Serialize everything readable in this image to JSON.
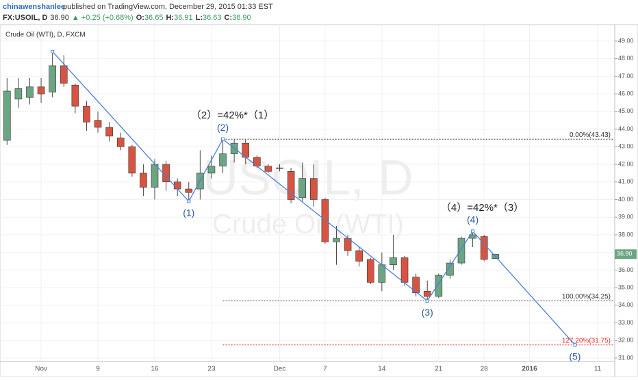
{
  "header": {
    "author": "chinawenshanlee",
    "published": "published on TradingView.com, December 29, 2015 01:33 EST",
    "symbol": "FX:USOIL, D",
    "price": "36.90",
    "change": "▲ +0.25 (+0.68%)",
    "ohlc": [
      {
        "key": "O:",
        "value": "36.65"
      },
      {
        "key": "H:",
        "value": "36.91"
      },
      {
        "key": "L:",
        "value": "36.63"
      },
      {
        "key": "C:",
        "value": "36.90"
      }
    ]
  },
  "chart_data": {
    "type": "candlestick",
    "legend": "Crude Oil (WTI), D, FXCM",
    "watermark": [
      "USOIL, D",
      "Crude Oil (WTI)"
    ],
    "categories": [
      null,
      null,
      null,
      "Nov",
      null,
      null,
      null,
      null,
      "9",
      null,
      null,
      null,
      null,
      "16",
      null,
      null,
      null,
      null,
      "23",
      null,
      null,
      null,
      null,
      null,
      "Dec",
      null,
      null,
      null,
      "7",
      null,
      null,
      null,
      null,
      "14",
      null,
      null,
      null,
      null,
      "21",
      null,
      null,
      null,
      "28",
      null,
      null,
      null,
      "2016",
      null,
      null,
      null,
      null,
      null,
      "11",
      null
    ],
    "open": [
      43.36,
      45.7,
      45.8,
      46.4,
      46.1,
      47.6,
      46.5,
      45.3,
      44.5,
      44.1,
      43.5,
      43.0,
      41.5,
      40.7,
      42.0,
      41.0,
      40.6,
      40.6,
      41.5,
      41.9,
      42.6,
      43.2,
      42.4,
      41.9,
      41.8,
      41.6,
      40.1,
      41.2,
      40.0,
      37.6,
      37.8,
      37.1,
      36.6,
      35.3,
      36.3,
      36.7,
      35.6,
      34.8,
      34.5,
      35.7,
      36.4,
      37.8,
      37.9,
      36.65,
      null,
      null,
      null,
      null,
      null,
      null,
      null,
      null,
      null,
      null
    ],
    "high": [
      46.9,
      46.9,
      46.9,
      46.9,
      48.4,
      48.2,
      46.6,
      45.6,
      45.0,
      44.4,
      43.8,
      43.1,
      42.0,
      42.3,
      42.2,
      41.2,
      41.0,
      42.8,
      42.5,
      43.43,
      43.4,
      43.4,
      42.5,
      42.0,
      42.0,
      41.8,
      42.1,
      42.0,
      40.1,
      38.5,
      38.0,
      37.3,
      36.7,
      37.0,
      38.0,
      36.8,
      35.8,
      35.4,
      35.8,
      36.6,
      37.9,
      38.2,
      38.0,
      36.91,
      null,
      null,
      null,
      null,
      null,
      null,
      null,
      null,
      null,
      null
    ],
    "low": [
      43.1,
      45.2,
      45.4,
      45.5,
      45.8,
      46.4,
      44.9,
      43.9,
      43.8,
      43.3,
      42.8,
      41.3,
      40.2,
      40.0,
      40.5,
      40.2,
      39.9,
      40.0,
      41.2,
      41.5,
      42.1,
      42.0,
      41.8,
      41.5,
      41.6,
      39.8,
      39.9,
      39.6,
      37.5,
      36.3,
      36.8,
      36.2,
      35.2,
      34.8,
      36.0,
      35.1,
      34.5,
      34.25,
      34.4,
      35.5,
      36.3,
      37.3,
      36.5,
      36.63,
      null,
      null,
      null,
      null,
      null,
      null,
      null,
      null,
      null,
      null
    ],
    "close": [
      46.16,
      46.3,
      46.4,
      46.0,
      47.6,
      46.6,
      45.3,
      44.4,
      44.1,
      43.6,
      43.0,
      41.5,
      40.7,
      42.0,
      41.0,
      40.6,
      40.4,
      41.5,
      41.9,
      42.6,
      43.2,
      42.4,
      41.9,
      41.6,
      41.8,
      40.0,
      41.2,
      40.0,
      37.6,
      37.8,
      37.1,
      36.5,
      35.3,
      36.3,
      36.7,
      35.3,
      34.7,
      34.5,
      35.7,
      36.4,
      37.8,
      38.0,
      36.6,
      36.9,
      null,
      null,
      null,
      null,
      null,
      null,
      null,
      null,
      null,
      null
    ],
    "up_color": "#6ba583",
    "down_color": "#d75442",
    "ylim": [
      30.34,
      49.93
    ],
    "yticks": [
      {
        "value": 31,
        "label": "31.00"
      },
      {
        "value": 32,
        "label": "32.00"
      },
      {
        "value": 33,
        "label": "33.00"
      },
      {
        "value": 34,
        "label": "34.00"
      },
      {
        "value": 35,
        "label": "35.00"
      },
      {
        "value": 36,
        "label": "36.00"
      },
      {
        "value": 37,
        "label": "37.00"
      },
      {
        "value": 38,
        "label": "38.00"
      },
      {
        "value": 39,
        "label": "39.00"
      },
      {
        "value": 40,
        "label": "40.00"
      },
      {
        "value": 41,
        "label": "41.00"
      },
      {
        "value": 42,
        "label": "42.00"
      },
      {
        "value": 43,
        "label": "43.00"
      },
      {
        "value": 44,
        "label": "44.00"
      },
      {
        "value": 45,
        "label": "45.00"
      },
      {
        "value": 46,
        "label": "46.00"
      },
      {
        "value": 47,
        "label": "47.00"
      },
      {
        "value": 48,
        "label": "48.00"
      },
      {
        "value": 49,
        "label": "49.00"
      }
    ],
    "grid": true,
    "last_price": {
      "value": 36.9,
      "label": "36.90"
    },
    "waves": {
      "color": "#4a7fd4",
      "x": [
        4,
        16,
        19,
        37,
        41,
        50
      ],
      "y": [
        48.4,
        39.9,
        43.43,
        34.25,
        38.2,
        31.75
      ],
      "labels": [
        null,
        "(1)",
        "(2)",
        "(3)",
        "(4)",
        "(5)"
      ]
    },
    "wave_notes": [
      {
        "text": "（2）=42%*（1）",
        "at": 2
      },
      {
        "text": "（4）=42%*（3）",
        "at": 4
      }
    ],
    "levels": [
      {
        "value": 43.43,
        "label": "0.00%(43.43)",
        "color": "#333333"
      },
      {
        "value": 34.25,
        "label": "100.00%(34.25)",
        "color": "#333333"
      },
      {
        "value": 31.75,
        "label": "127.20%(31.75)",
        "color": "#e03030"
      }
    ]
  }
}
